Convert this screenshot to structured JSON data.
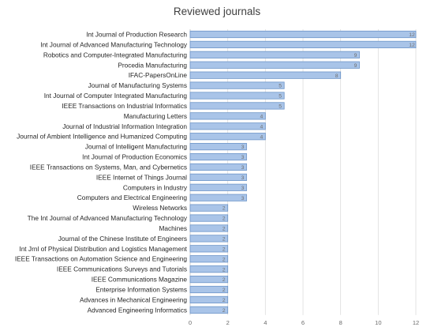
{
  "chart_data": {
    "type": "bar",
    "orientation": "horizontal",
    "title": "Reviewed journals",
    "xlabel": "",
    "ylabel": "",
    "xlim": [
      0,
      12
    ],
    "x_ticks": [
      0,
      2,
      4,
      6,
      8,
      10,
      12
    ],
    "grid": true,
    "bar_color": "#a9c4e8",
    "bar_edge_color": "#6d95c8",
    "categories": [
      "Int Journal of Production Research",
      "Int Journal of Advanced Manufacturing Technology",
      "Robotics and Computer-Integrated Manufacturing",
      "Procedia Manufacturing",
      "IFAC-PapersOnLine",
      "Journal of Manufacturing Systems",
      "Int Journal of Computer Integrated Manufacturing",
      "IEEE Transactions on Industrial Informatics",
      "Manufacturing Letters",
      "Journal of Industrial Information Integration",
      "Journal of Ambient Intelligence and Humanized Computing",
      "Journal of Intelligent Manufacturing",
      "Int Journal of Production Economics",
      "IEEE Transactions on Systems, Man, and Cybernetics",
      "IEEE Internet of Things Journal",
      "Computers in Industry",
      "Computers and Electrical Engineering",
      "Wireless Networks",
      "The Int Journal of Advanced Manufacturing Technology",
      "Machines",
      "Journal of the Chinese Institute of Engineers",
      "Int Jrnl of Physical Distribution and Logistics Management",
      "IEEE Transactions on Automation Science and Engineering",
      "IEEE Communications Surveys and Tutorials",
      "IEEE Communications Magazine",
      "Enterprise Information Systems",
      "Advances in Mechanical Engineering",
      "Advanced Engineering Informatics"
    ],
    "values": [
      12,
      12,
      9,
      9,
      8,
      5,
      5,
      5,
      4,
      4,
      4,
      3,
      3,
      3,
      3,
      3,
      3,
      2,
      2,
      2,
      2,
      2,
      2,
      2,
      2,
      2,
      2,
      2
    ]
  }
}
